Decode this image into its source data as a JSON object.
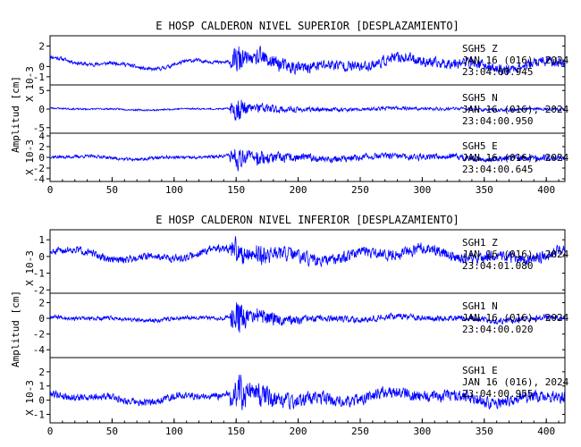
{
  "chart_data": [
    {
      "type": "line",
      "title": "E HOSP CALDERON NIVEL SUPERIOR [DESPLAZAMIENTO]",
      "ylabel": "Amplitud [cm]",
      "scale_label": "X 10-3",
      "xlim": [
        0,
        415
      ],
      "xticks": [
        "0",
        "50",
        "100",
        "150",
        "200",
        "250",
        "300",
        "350",
        "400"
      ],
      "xtick_values": [
        0,
        50,
        100,
        150,
        200,
        250,
        300,
        350,
        400
      ],
      "color": "#0000ff",
      "panels": [
        {
          "station": "SGH5",
          "component": "Z",
          "date": "JAN 16 (016), 2024",
          "time": "23:04:00.945",
          "ylim": [
            -1.8,
            3.0
          ],
          "yticks": [
            "2",
            "0",
            "-1"
          ],
          "ytick_values": [
            2,
            0,
            -1
          ],
          "baseline": 0.3,
          "pre_amp": 0.25,
          "peak_amp": 2.2,
          "coda_amp": 0.7,
          "long_period_amp": 0.6,
          "peak_time": 148,
          "seed": 11
        },
        {
          "station": "SGH5",
          "component": "N",
          "date": "JAN 16 (016), 2024",
          "time": "23:04:00.950",
          "ylim": [
            -6.5,
            6.5
          ],
          "yticks": [
            "5",
            "0",
            "-5"
          ],
          "ytick_values": [
            5,
            0,
            -5
          ],
          "baseline": 0,
          "pre_amp": 0.3,
          "peak_amp": 5.5,
          "coda_amp": 0.6,
          "long_period_amp": 0.3,
          "peak_time": 148,
          "seed": 23
        },
        {
          "station": "SGH5",
          "component": "E",
          "date": "JAN 16 (016), 2024",
          "time": "23:04:00.645",
          "ylim": [
            -4.5,
            4.5
          ],
          "yticks": [
            "4",
            "2",
            "0",
            "-2",
            "-4"
          ],
          "ytick_values": [
            4,
            2,
            0,
            -2,
            -4
          ],
          "baseline": 0,
          "pre_amp": 0.4,
          "peak_amp": 3.8,
          "coda_amp": 0.8,
          "long_period_amp": 0.4,
          "peak_time": 148,
          "seed": 37
        }
      ]
    },
    {
      "type": "line",
      "title": "E HOSP CALDERON NIVEL INFERIOR [DESPLAZAMIENTO]",
      "ylabel": "Amplitud [cm]",
      "scale_label": "X 10-3",
      "xlim": [
        0,
        415
      ],
      "xticks": [
        "0",
        "50",
        "100",
        "150",
        "200",
        "250",
        "300",
        "350",
        "400"
      ],
      "xtick_values": [
        0,
        50,
        100,
        150,
        200,
        250,
        300,
        350,
        400
      ],
      "color": "#0000ff",
      "panels": [
        {
          "station": "SGH1",
          "component": "Z",
          "date": "JAN 16 (016), 2024",
          "time": "23:04:01.080",
          "ylim": [
            -2.2,
            1.6
          ],
          "yticks": [
            "1",
            "0",
            "-1",
            "-2"
          ],
          "ytick_values": [
            1,
            0,
            -1,
            -2
          ],
          "baseline": 0.1,
          "pre_amp": 0.3,
          "peak_amp": 1.4,
          "coda_amp": 0.45,
          "long_period_amp": 0.4,
          "peak_time": 148,
          "seed": 51
        },
        {
          "station": "SGH1",
          "component": "N",
          "date": "JAN 16 (016), 2024",
          "time": "23:04:00.020",
          "ylim": [
            -5,
            3.2
          ],
          "yticks": [
            "2",
            "0",
            "-2",
            "-4"
          ],
          "ytick_values": [
            2,
            0,
            -2,
            -4
          ],
          "baseline": 0,
          "pre_amp": 0.35,
          "peak_amp": 3.5,
          "coda_amp": 0.5,
          "long_period_amp": 0.3,
          "peak_time": 148,
          "seed": 67
        },
        {
          "station": "SGH1",
          "component": "E",
          "date": "JAN 16 (016), 2024",
          "time": "23:04:00.955",
          "ylim": [
            -1.6,
            3.0
          ],
          "yticks": [
            "2",
            "1",
            "0",
            "-1"
          ],
          "ytick_values": [
            2,
            1,
            0,
            -1
          ],
          "baseline": 0.2,
          "pre_amp": 0.35,
          "peak_amp": 2.5,
          "coda_amp": 0.55,
          "long_period_amp": 0.4,
          "peak_time": 148,
          "seed": 79
        }
      ]
    }
  ]
}
